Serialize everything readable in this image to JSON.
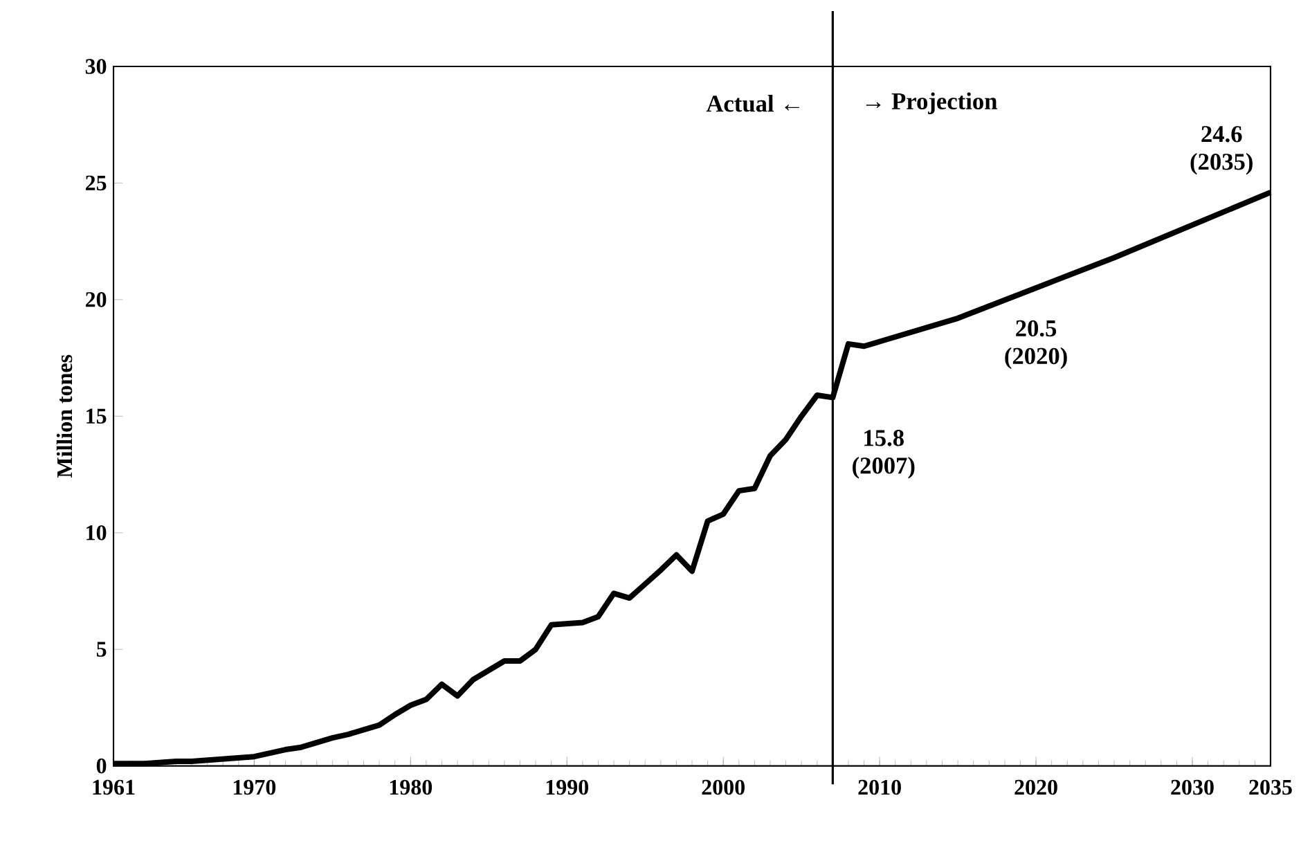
{
  "chart_data": {
    "type": "line",
    "ylabel": "Million tones",
    "x": [
      1961,
      1962,
      1963,
      1964,
      1965,
      1966,
      1967,
      1968,
      1969,
      1970,
      1971,
      1972,
      1973,
      1974,
      1975,
      1976,
      1977,
      1978,
      1979,
      1980,
      1981,
      1982,
      1983,
      1984,
      1985,
      1986,
      1987,
      1988,
      1989,
      1990,
      1991,
      1992,
      1993,
      1994,
      1995,
      1996,
      1997,
      1998,
      1999,
      2000,
      2001,
      2002,
      2003,
      2004,
      2005,
      2006,
      2007,
      2008,
      2009,
      2010,
      2015,
      2020,
      2025,
      2030,
      2035
    ],
    "series": [
      {
        "color": "#000000",
        "values": [
          0.1,
          0.1,
          0.1,
          0.15,
          0.2,
          0.2,
          0.25,
          0.3,
          0.35,
          0.4,
          0.55,
          0.7,
          0.8,
          1.0,
          1.2,
          1.35,
          1.55,
          1.75,
          2.2,
          2.6,
          2.85,
          3.5,
          3.0,
          3.7,
          4.1,
          4.5,
          4.5,
          5.0,
          6.05,
          6.1,
          6.15,
          6.4,
          7.4,
          7.2,
          7.8,
          8.4,
          9.05,
          8.35,
          10.5,
          10.8,
          11.8,
          11.9,
          13.3,
          14.0,
          15.0,
          15.9,
          15.8,
          18.1,
          18.0,
          18.2,
          19.2,
          20.5,
          21.8,
          23.2,
          24.6
        ]
      }
    ],
    "xlim": [
      1961,
      2035
    ],
    "xticks": [
      1961,
      1970,
      1980,
      1990,
      2000,
      2010,
      2020,
      2030,
      2035
    ],
    "ylim": [
      0,
      30
    ],
    "yticks": [
      0,
      5,
      10,
      15,
      20,
      25,
      30
    ],
    "grid": false,
    "marker": "none",
    "line_style": "solid",
    "ref_lines": [
      {
        "axis": "x",
        "value": 2007,
        "color": "#000000"
      }
    ],
    "annotations": [
      "Actual ←",
      "→ Projection",
      {
        "text": "15.8 (2007)",
        "x": 2007,
        "y": 15.8
      },
      {
        "text": "20.5 (2020)",
        "x": 2020,
        "y": 20.5
      },
      {
        "text": "24.6 (2035)",
        "x": 2035,
        "y": 24.6
      }
    ]
  }
}
